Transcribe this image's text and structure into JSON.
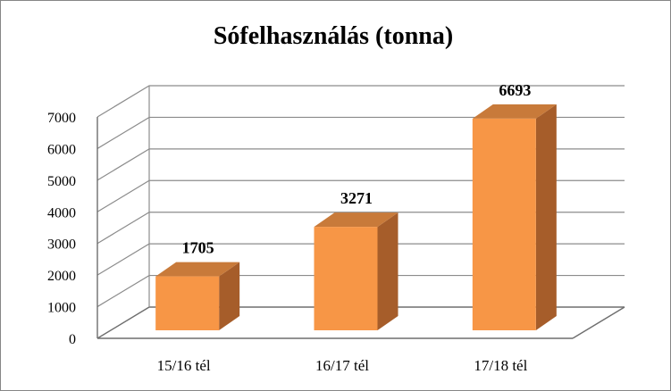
{
  "chart_data": {
    "type": "bar",
    "title": "Sófelhasználás  (tonna)",
    "categories": [
      "15/16 tél",
      "16/17 tél",
      "17/18 tél"
    ],
    "values": [
      1705,
      3271,
      6693
    ],
    "data_labels": [
      "1705",
      "3271",
      "6693"
    ],
    "yticks": [
      "0",
      "1000",
      "2000",
      "3000",
      "4000",
      "5000",
      "6000",
      "7000"
    ],
    "ylim": [
      0,
      7000
    ],
    "xlabel": "",
    "ylabel": "",
    "grid": true,
    "legend": "none",
    "three_d": true,
    "colors": {
      "bar_front": "#f79646",
      "bar_top": "#c87a3a",
      "bar_side": "#a65d2a",
      "grid": "#8c8c8c",
      "border": "#868686"
    }
  }
}
